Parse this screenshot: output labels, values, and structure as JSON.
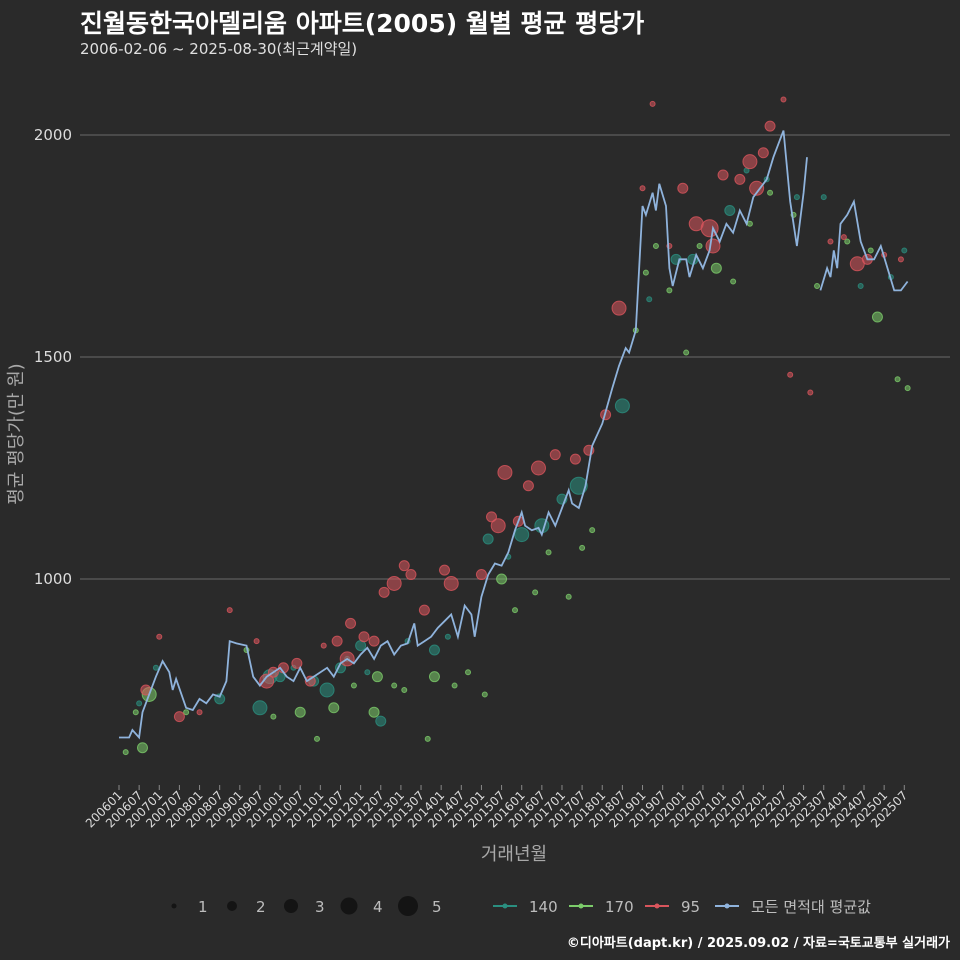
{
  "header": {
    "title": "진월동한국아델리움 아파트(2005) 월별 평균 평당가",
    "subtitle": "2006-02-06 ~ 2025-08-30(최근계약일)"
  },
  "footer": {
    "credit": "©디아파트(dapt.kr) / 2025.09.02 / 자료=국토교통부 실거래가"
  },
  "colors": {
    "background": "#2a2a2a",
    "grid": "#6a6a6a",
    "s140": "#2a8f80",
    "s170": "#7ccc6a",
    "s95": "#d9555c",
    "avg": "#8fb3dc"
  },
  "legend": {
    "size_items": [
      {
        "label": "1",
        "value": 1
      },
      {
        "label": "2",
        "value": 2
      },
      {
        "label": "3",
        "value": 3
      },
      {
        "label": "4",
        "value": 4
      },
      {
        "label": "5",
        "value": 5
      }
    ],
    "series_items": [
      {
        "label": "140",
        "color_key": "s140"
      },
      {
        "label": "170",
        "color_key": "s170"
      },
      {
        "label": "95",
        "color_key": "s95"
      },
      {
        "label": "모든 면적대 평균값",
        "color_key": "avg"
      }
    ]
  },
  "chart_data": {
    "type": "scatter",
    "xlabel": "거래년월",
    "ylabel": "평균 평당가(만 원)",
    "xlim": [
      "2006-01",
      "2025-09"
    ],
    "ylim": [
      560,
      2110
    ],
    "yticks": [
      1000,
      1500,
      2000
    ],
    "xticks": [
      "200601",
      "200607",
      "200701",
      "200707",
      "200801",
      "200807",
      "200901",
      "200907",
      "201001",
      "201007",
      "201101",
      "201107",
      "201201",
      "201207",
      "201301",
      "201307",
      "201401",
      "201407",
      "201501",
      "201507",
      "201601",
      "201607",
      "201701",
      "201707",
      "201801",
      "201807",
      "201901",
      "201907",
      "202001",
      "202007",
      "202101",
      "202107",
      "202201",
      "202207",
      "202301",
      "202307",
      "202401",
      "202407",
      "202501",
      "202507"
    ],
    "grid": "horizontal",
    "legend_position": "bottom",
    "avg_line": [
      [
        "2006-01",
        643
      ],
      [
        "2006-04",
        643
      ],
      [
        "2006-05",
        660
      ],
      [
        "2006-07",
        643
      ],
      [
        "2006-08",
        700
      ],
      [
        "2006-10",
        740
      ],
      [
        "2006-12",
        780
      ],
      [
        "2007-02",
        815
      ],
      [
        "2007-04",
        790
      ],
      [
        "2007-05",
        750
      ],
      [
        "2007-06",
        775
      ],
      [
        "2007-09",
        710
      ],
      [
        "2007-11",
        705
      ],
      [
        "2008-01",
        730
      ],
      [
        "2008-03",
        720
      ],
      [
        "2008-05",
        740
      ],
      [
        "2008-07",
        735
      ],
      [
        "2008-09",
        770
      ],
      [
        "2008-10",
        860
      ],
      [
        "2008-12",
        855
      ],
      [
        "2009-03",
        850
      ],
      [
        "2009-05",
        780
      ],
      [
        "2009-07",
        760
      ],
      [
        "2009-09",
        780
      ],
      [
        "2009-11",
        790
      ],
      [
        "2010-01",
        800
      ],
      [
        "2010-03",
        780
      ],
      [
        "2010-05",
        770
      ],
      [
        "2010-07",
        800
      ],
      [
        "2010-09",
        770
      ],
      [
        "2010-11",
        780
      ],
      [
        "2011-01",
        790
      ],
      [
        "2011-03",
        800
      ],
      [
        "2011-05",
        780
      ],
      [
        "2011-07",
        810
      ],
      [
        "2011-09",
        820
      ],
      [
        "2011-11",
        810
      ],
      [
        "2012-01",
        830
      ],
      [
        "2012-03",
        845
      ],
      [
        "2012-05",
        820
      ],
      [
        "2012-07",
        850
      ],
      [
        "2012-09",
        860
      ],
      [
        "2012-11",
        830
      ],
      [
        "2013-01",
        850
      ],
      [
        "2013-03",
        855
      ],
      [
        "2013-05",
        900
      ],
      [
        "2013-06",
        850
      ],
      [
        "2013-08",
        860
      ],
      [
        "2013-10",
        870
      ],
      [
        "2013-12",
        890
      ],
      [
        "2014-02",
        905
      ],
      [
        "2014-04",
        920
      ],
      [
        "2014-06",
        870
      ],
      [
        "2014-08",
        940
      ],
      [
        "2014-10",
        920
      ],
      [
        "2014-11",
        870
      ],
      [
        "2015-01",
        960
      ],
      [
        "2015-03",
        1010
      ],
      [
        "2015-05",
        1035
      ],
      [
        "2015-07",
        1030
      ],
      [
        "2015-09",
        1060
      ],
      [
        "2015-11",
        1110
      ],
      [
        "2016-01",
        1150
      ],
      [
        "2016-02",
        1120
      ],
      [
        "2016-04",
        1110
      ],
      [
        "2016-06",
        1115
      ],
      [
        "2016-07",
        1100
      ],
      [
        "2016-09",
        1150
      ],
      [
        "2016-11",
        1120
      ],
      [
        "2017-01",
        1160
      ],
      [
        "2017-03",
        1200
      ],
      [
        "2017-04",
        1170
      ],
      [
        "2017-06",
        1160
      ],
      [
        "2017-08",
        1210
      ],
      [
        "2017-10",
        1300
      ],
      [
        "2018-01",
        1350
      ],
      [
        "2018-04",
        1430
      ],
      [
        "2018-06",
        1480
      ],
      [
        "2018-08",
        1520
      ],
      [
        "2018-09",
        1510
      ],
      [
        "2018-11",
        1560
      ],
      [
        "2019-01",
        1840
      ],
      [
        "2019-02",
        1820
      ],
      [
        "2019-04",
        1870
      ],
      [
        "2019-05",
        1830
      ],
      [
        "2019-06",
        1890
      ],
      [
        "2019-08",
        1840
      ],
      [
        "2019-09",
        1700
      ],
      [
        "2019-10",
        1660
      ],
      [
        "2019-12",
        1720
      ],
      [
        "2020-02",
        1720
      ],
      [
        "2020-03",
        1680
      ],
      [
        "2020-05",
        1730
      ],
      [
        "2020-07",
        1700
      ],
      [
        "2020-09",
        1740
      ],
      [
        "2020-10",
        1790
      ],
      [
        "2020-12",
        1760
      ],
      [
        "2021-02",
        1800
      ],
      [
        "2021-04",
        1780
      ],
      [
        "2021-06",
        1830
      ],
      [
        "2021-08",
        1800
      ],
      [
        "2021-10",
        1860
      ],
      [
        "2021-12",
        1880
      ],
      [
        "2022-02",
        1900
      ],
      [
        "2022-04",
        1950
      ],
      [
        "2022-06",
        1990
      ],
      [
        "2022-07",
        2010
      ],
      [
        "2022-09",
        1850
      ],
      [
        "2022-11",
        1750
      ],
      [
        "2023-01",
        1870
      ],
      [
        "2023-02",
        1950
      ],
      [
        "2023-04",
        null
      ],
      [
        "2023-06",
        1650
      ],
      [
        "2023-08",
        1700
      ],
      [
        "2023-09",
        1680
      ],
      [
        "2023-10",
        1740
      ],
      [
        "2023-11",
        1700
      ],
      [
        "2023-12",
        1800
      ],
      [
        "2024-02",
        1820
      ],
      [
        "2024-04",
        1850
      ],
      [
        "2024-06",
        1760
      ],
      [
        "2024-08",
        1720
      ],
      [
        "2024-10",
        1720
      ],
      [
        "2024-12",
        1750
      ],
      [
        "2025-02",
        1700
      ],
      [
        "2025-04",
        1650
      ],
      [
        "2025-06",
        1650
      ],
      [
        "2025-08",
        1670
      ]
    ],
    "series": [
      {
        "name": "140",
        "color_key": "s140",
        "points": [
          [
            "2006-07",
            720,
            1
          ],
          [
            "2006-12",
            800,
            1
          ],
          [
            "2008-07",
            730,
            2
          ],
          [
            "2009-07",
            710,
            3
          ],
          [
            "2009-10",
            780,
            3
          ],
          [
            "2010-01",
            780,
            2
          ],
          [
            "2010-05",
            800,
            1
          ],
          [
            "2010-11",
            770,
            2
          ],
          [
            "2011-03",
            750,
            3
          ],
          [
            "2011-07",
            800,
            2
          ],
          [
            "2011-09",
            820,
            1
          ],
          [
            "2012-01",
            850,
            2
          ],
          [
            "2012-03",
            790,
            1
          ],
          [
            "2012-07",
            680,
            2
          ],
          [
            "2013-03",
            860,
            1
          ],
          [
            "2013-11",
            840,
            2
          ],
          [
            "2014-03",
            870,
            1
          ],
          [
            "2015-03",
            1090,
            2
          ],
          [
            "2015-09",
            1050,
            1
          ],
          [
            "2016-01",
            1100,
            3
          ],
          [
            "2016-07",
            1120,
            3
          ],
          [
            "2017-01",
            1180,
            2
          ],
          [
            "2017-06",
            1210,
            4
          ],
          [
            "2018-07",
            1390,
            3
          ],
          [
            "2019-03",
            1630,
            1
          ],
          [
            "2019-11",
            1720,
            2
          ],
          [
            "2020-04",
            1720,
            2
          ],
          [
            "2021-03",
            1830,
            2
          ],
          [
            "2021-08",
            1920,
            1
          ],
          [
            "2022-02",
            1900,
            1
          ],
          [
            "2022-11",
            1860,
            1
          ],
          [
            "2023-07",
            1860,
            1
          ],
          [
            "2024-06",
            1660,
            1
          ],
          [
            "2025-03",
            1680,
            1
          ],
          [
            "2025-07",
            1740,
            1
          ]
        ]
      },
      {
        "name": "170",
        "color_key": "s170",
        "points": [
          [
            "2006-03",
            610,
            1
          ],
          [
            "2006-06",
            700,
            1
          ],
          [
            "2006-08",
            620,
            2
          ],
          [
            "2006-10",
            740,
            3
          ],
          [
            "2007-09",
            700,
            1
          ],
          [
            "2009-03",
            840,
            1
          ],
          [
            "2009-11",
            690,
            1
          ],
          [
            "2010-07",
            700,
            2
          ],
          [
            "2010-12",
            640,
            1
          ],
          [
            "2011-05",
            710,
            2
          ],
          [
            "2011-11",
            760,
            1
          ],
          [
            "2012-05",
            700,
            2
          ],
          [
            "2012-06",
            780,
            2
          ],
          [
            "2012-11",
            760,
            1
          ],
          [
            "2013-02",
            750,
            1
          ],
          [
            "2013-09",
            640,
            1
          ],
          [
            "2013-11",
            780,
            2
          ],
          [
            "2014-05",
            760,
            1
          ],
          [
            "2014-09",
            790,
            1
          ],
          [
            "2015-02",
            740,
            1
          ],
          [
            "2015-07",
            1000,
            2
          ],
          [
            "2015-11",
            930,
            1
          ],
          [
            "2016-05",
            970,
            1
          ],
          [
            "2016-09",
            1060,
            1
          ],
          [
            "2017-03",
            960,
            1
          ],
          [
            "2017-07",
            1070,
            1
          ],
          [
            "2017-10",
            1110,
            1
          ],
          [
            "2018-11",
            1560,
            1
          ],
          [
            "2019-02",
            1690,
            1
          ],
          [
            "2019-05",
            1750,
            1
          ],
          [
            "2019-09",
            1650,
            1
          ],
          [
            "2020-02",
            1510,
            1
          ],
          [
            "2020-06",
            1750,
            1
          ],
          [
            "2020-11",
            1700,
            2
          ],
          [
            "2021-04",
            1670,
            1
          ],
          [
            "2021-09",
            1800,
            1
          ],
          [
            "2022-03",
            1870,
            1
          ],
          [
            "2022-10",
            1820,
            1
          ],
          [
            "2023-05",
            1660,
            1
          ],
          [
            "2024-02",
            1760,
            1
          ],
          [
            "2024-09",
            1740,
            1
          ],
          [
            "2024-11",
            1590,
            2
          ],
          [
            "2025-05",
            1450,
            1
          ],
          [
            "2025-08",
            1430,
            1
          ]
        ]
      },
      {
        "name": "95",
        "color_key": "s95",
        "points": [
          [
            "2006-09",
            750,
            2
          ],
          [
            "2007-01",
            870,
            1
          ],
          [
            "2007-07",
            690,
            2
          ],
          [
            "2008-01",
            700,
            1
          ],
          [
            "2008-10",
            930,
            1
          ],
          [
            "2009-06",
            860,
            1
          ],
          [
            "2009-09",
            770,
            3
          ],
          [
            "2009-11",
            790,
            2
          ],
          [
            "2010-02",
            800,
            2
          ],
          [
            "2010-06",
            810,
            2
          ],
          [
            "2010-10",
            770,
            2
          ],
          [
            "2011-02",
            850,
            1
          ],
          [
            "2011-06",
            860,
            2
          ],
          [
            "2011-09",
            820,
            3
          ],
          [
            "2011-10",
            900,
            2
          ],
          [
            "2012-02",
            870,
            2
          ],
          [
            "2012-05",
            860,
            2
          ],
          [
            "2012-08",
            970,
            2
          ],
          [
            "2012-11",
            990,
            3
          ],
          [
            "2013-02",
            1030,
            2
          ],
          [
            "2013-04",
            1010,
            2
          ],
          [
            "2013-08",
            930,
            2
          ],
          [
            "2014-02",
            1020,
            2
          ],
          [
            "2014-04",
            990,
            3
          ],
          [
            "2015-01",
            1010,
            2
          ],
          [
            "2015-04",
            1140,
            2
          ],
          [
            "2015-06",
            1120,
            3
          ],
          [
            "2015-08",
            1240,
            3
          ],
          [
            "2015-12",
            1130,
            2
          ],
          [
            "2016-03",
            1210,
            2
          ],
          [
            "2016-06",
            1250,
            3
          ],
          [
            "2016-11",
            1280,
            2
          ],
          [
            "2017-05",
            1270,
            2
          ],
          [
            "2017-09",
            1290,
            2
          ],
          [
            "2018-02",
            1370,
            2
          ],
          [
            "2018-06",
            1610,
            3
          ],
          [
            "2019-01",
            1880,
            1
          ],
          [
            "2019-04",
            2070,
            1
          ],
          [
            "2019-09",
            1750,
            1
          ],
          [
            "2020-01",
            1880,
            2
          ],
          [
            "2020-05",
            1800,
            3
          ],
          [
            "2020-09",
            1790,
            4
          ],
          [
            "2020-10",
            1750,
            3
          ],
          [
            "2021-01",
            1910,
            2
          ],
          [
            "2021-06",
            1900,
            2
          ],
          [
            "2021-09",
            1940,
            3
          ],
          [
            "2021-11",
            1880,
            3
          ],
          [
            "2022-01",
            1960,
            2
          ],
          [
            "2022-03",
            2020,
            2
          ],
          [
            "2022-07",
            2080,
            1
          ],
          [
            "2022-09",
            1460,
            1
          ],
          [
            "2023-03",
            1420,
            1
          ],
          [
            "2023-09",
            1760,
            1
          ],
          [
            "2024-01",
            1770,
            1
          ],
          [
            "2024-05",
            1710,
            3
          ],
          [
            "2024-08",
            1720,
            2
          ],
          [
            "2025-01",
            1730,
            1
          ],
          [
            "2025-06",
            1720,
            1
          ]
        ]
      }
    ]
  }
}
